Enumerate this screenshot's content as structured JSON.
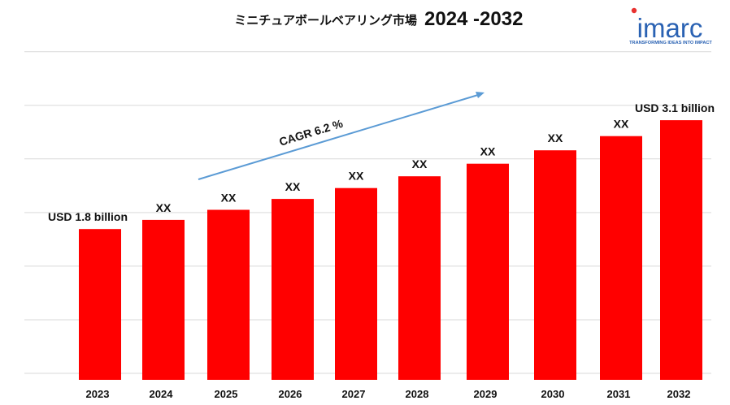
{
  "title": {
    "text": "ミニチュアボールベアリング市場",
    "years": "2024 -2032"
  },
  "logo": {
    "name": "imarc",
    "tagline": "TRANSFORMING IDEAS INTO IMPACT",
    "color": "#2a62b3"
  },
  "annotation": {
    "cagr": "CAGR 6.2 %",
    "arrow_color": "#5b9bd5"
  },
  "colors": {
    "bar": "#ff0000",
    "bar_edge": "#c00000",
    "grid": "#d9d9d9"
  },
  "chart_data": {
    "type": "bar",
    "categories": [
      "2023",
      "2024",
      "2025",
      "2026",
      "2027",
      "2028",
      "2029",
      "2030",
      "2031",
      "2032"
    ],
    "values": [
      1.8,
      1.91,
      2.03,
      2.16,
      2.29,
      2.43,
      2.58,
      2.74,
      2.91,
      3.1
    ],
    "data_labels": [
      "USD 1.8 billion",
      "XX",
      "XX",
      "XX",
      "XX",
      "XX",
      "XX",
      "XX",
      "XX",
      "USD 3.1 billion"
    ],
    "title": "ミニチュアボールベアリング市場 2024 -2032",
    "xlabel": "",
    "ylabel": "",
    "ylim": [
      0,
      3.5
    ],
    "grid": true,
    "legend": "none"
  }
}
